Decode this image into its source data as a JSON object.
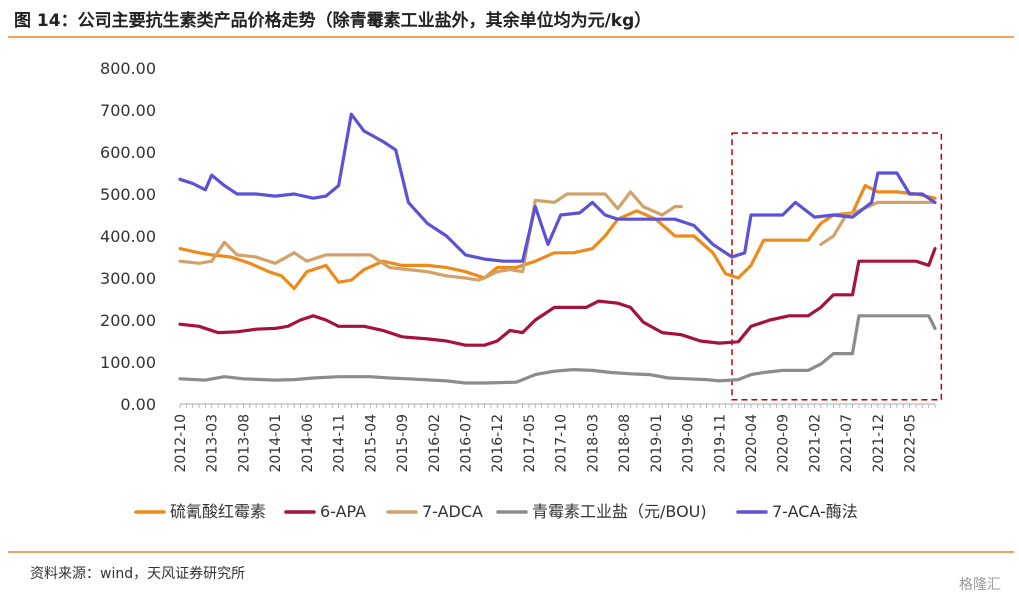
{
  "title": "图 14：公司主要抗生素类产品价格走势（除青霉素工业盐外，其余单位均为元/kg）",
  "source": "资料来源：wind，天风证券研究所",
  "watermark": "格隆汇",
  "chart_data": {
    "type": "line",
    "ylim": [
      0,
      800
    ],
    "yticks": [
      "0.00",
      "100.00",
      "200.00",
      "300.00",
      "400.00",
      "500.00",
      "600.00",
      "700.00",
      "800.00"
    ],
    "x_start": "2012-10",
    "x_end": "2022-09",
    "xtick_labels": [
      "2012-10",
      "2013-03",
      "2013-08",
      "2014-01",
      "2014-06",
      "2014-11",
      "2015-04",
      "2015-09",
      "2016-02",
      "2016-07",
      "2016-12",
      "2017-05",
      "2017-10",
      "2018-03",
      "2018-08",
      "2019-01",
      "2019-06",
      "2019-11",
      "2020-04",
      "2020-09",
      "2021-02",
      "2021-07",
      "2021-12",
      "2022-05"
    ],
    "highlight_box": {
      "x_from": "2020-01",
      "x_to": "2022-10",
      "y_from": 10,
      "y_to": 645,
      "color": "#C00000"
    },
    "series": [
      {
        "name": "硫氰酸红霉素",
        "color": "#ED8B1A",
        "points": [
          [
            "2012-10",
            370
          ],
          [
            "2013-01",
            360
          ],
          [
            "2013-03",
            355
          ],
          [
            "2013-06",
            350
          ],
          [
            "2013-09",
            335
          ],
          [
            "2013-12",
            315
          ],
          [
            "2014-02",
            305
          ],
          [
            "2014-04",
            275
          ],
          [
            "2014-06",
            315
          ],
          [
            "2014-09",
            330
          ],
          [
            "2014-11",
            290
          ],
          [
            "2015-01",
            295
          ],
          [
            "2015-03",
            320
          ],
          [
            "2015-06",
            340
          ],
          [
            "2015-09",
            330
          ],
          [
            "2016-01",
            330
          ],
          [
            "2016-04",
            325
          ],
          [
            "2016-07",
            315
          ],
          [
            "2016-10",
            300
          ],
          [
            "2016-12",
            325
          ],
          [
            "2017-03",
            325
          ],
          [
            "2017-06",
            340
          ],
          [
            "2017-09",
            360
          ],
          [
            "2017-12",
            360
          ],
          [
            "2018-03",
            370
          ],
          [
            "2018-05",
            400
          ],
          [
            "2018-07",
            440
          ],
          [
            "2018-10",
            460
          ],
          [
            "2019-01",
            440
          ],
          [
            "2019-04",
            400
          ],
          [
            "2019-07",
            400
          ],
          [
            "2019-10",
            360
          ],
          [
            "2019-12",
            310
          ],
          [
            "2020-02",
            300
          ],
          [
            "2020-04",
            330
          ],
          [
            "2020-06",
            390
          ],
          [
            "2020-09",
            390
          ],
          [
            "2021-01",
            390
          ],
          [
            "2021-03",
            430
          ],
          [
            "2021-05",
            450
          ],
          [
            "2021-08",
            455
          ],
          [
            "2021-10",
            520
          ],
          [
            "2021-12",
            505
          ],
          [
            "2022-03",
            505
          ],
          [
            "2022-06",
            500
          ],
          [
            "2022-09",
            490
          ]
        ]
      },
      {
        "name": "6-APA",
        "color": "#A3133A",
        "points": [
          [
            "2012-10",
            190
          ],
          [
            "2013-01",
            185
          ],
          [
            "2013-04",
            170
          ],
          [
            "2013-07",
            172
          ],
          [
            "2013-10",
            178
          ],
          [
            "2014-01",
            180
          ],
          [
            "2014-03",
            185
          ],
          [
            "2014-05",
            200
          ],
          [
            "2014-07",
            210
          ],
          [
            "2014-09",
            200
          ],
          [
            "2014-11",
            185
          ],
          [
            "2015-03",
            185
          ],
          [
            "2015-06",
            175
          ],
          [
            "2015-09",
            160
          ],
          [
            "2016-01",
            155
          ],
          [
            "2016-04",
            150
          ],
          [
            "2016-07",
            140
          ],
          [
            "2016-10",
            140
          ],
          [
            "2016-12",
            150
          ],
          [
            "2017-02",
            175
          ],
          [
            "2017-04",
            170
          ],
          [
            "2017-06",
            200
          ],
          [
            "2017-09",
            230
          ],
          [
            "2017-12",
            230
          ],
          [
            "2018-02",
            230
          ],
          [
            "2018-04",
            245
          ],
          [
            "2018-07",
            240
          ],
          [
            "2018-09",
            230
          ],
          [
            "2018-11",
            195
          ],
          [
            "2019-02",
            170
          ],
          [
            "2019-05",
            165
          ],
          [
            "2019-08",
            150
          ],
          [
            "2019-11",
            145
          ],
          [
            "2020-02",
            148
          ],
          [
            "2020-04",
            185
          ],
          [
            "2020-07",
            200
          ],
          [
            "2020-10",
            210
          ],
          [
            "2021-01",
            210
          ],
          [
            "2021-03",
            230
          ],
          [
            "2021-05",
            260
          ],
          [
            "2021-08",
            260
          ],
          [
            "2021-09",
            340
          ],
          [
            "2021-12",
            340
          ],
          [
            "2022-03",
            340
          ],
          [
            "2022-06",
            340
          ],
          [
            "2022-08",
            330
          ],
          [
            "2022-09",
            370
          ]
        ]
      },
      {
        "name": "7-ADCA",
        "color": "#D2A26B",
        "points": [
          [
            "2012-10",
            340
          ],
          [
            "2013-01",
            335
          ],
          [
            "2013-03",
            340
          ],
          [
            "2013-05",
            385
          ],
          [
            "2013-07",
            355
          ],
          [
            "2013-10",
            350
          ],
          [
            "2014-01",
            335
          ],
          [
            "2014-04",
            360
          ],
          [
            "2014-06",
            340
          ],
          [
            "2014-09",
            355
          ],
          [
            "2015-01",
            355
          ],
          [
            "2015-04",
            355
          ],
          [
            "2015-07",
            325
          ],
          [
            "2015-10",
            320
          ],
          [
            "2016-01",
            315
          ],
          [
            "2016-04",
            305
          ],
          [
            "2016-07",
            300
          ],
          [
            "2016-09",
            295
          ],
          [
            "2016-10",
            300
          ],
          [
            "2016-12",
            315
          ],
          [
            "2017-02",
            320
          ],
          [
            "2017-04",
            315
          ],
          [
            "2017-06",
            485
          ],
          [
            "2017-09",
            480
          ],
          [
            "2017-11",
            500
          ],
          [
            "2018-02",
            500
          ],
          [
            "2018-05",
            500
          ],
          [
            "2018-07",
            465
          ],
          [
            "2018-09",
            505
          ],
          [
            "2018-11",
            470
          ],
          [
            "2019-02",
            450
          ],
          [
            "2019-04",
            470
          ],
          [
            "2019-05",
            470
          ],
          null,
          [
            "2021-03",
            380
          ],
          [
            "2021-05",
            400
          ],
          [
            "2021-07",
            450
          ],
          [
            "2021-09",
            460
          ],
          [
            "2021-12",
            480
          ],
          [
            "2022-03",
            480
          ],
          [
            "2022-06",
            480
          ],
          [
            "2022-09",
            480
          ]
        ]
      },
      {
        "name": "青霉素工业盐（元/BOU)",
        "color": "#8C8C8C",
        "points": [
          [
            "2012-10",
            60
          ],
          [
            "2013-02",
            57
          ],
          [
            "2013-05",
            65
          ],
          [
            "2013-08",
            60
          ],
          [
            "2014-01",
            57
          ],
          [
            "2014-04",
            58
          ],
          [
            "2014-07",
            62
          ],
          [
            "2014-11",
            65
          ],
          [
            "2015-04",
            65
          ],
          [
            "2015-07",
            62
          ],
          [
            "2015-10",
            60
          ],
          [
            "2016-04",
            55
          ],
          [
            "2016-07",
            50
          ],
          [
            "2016-10",
            50
          ],
          [
            "2017-03",
            52
          ],
          [
            "2017-06",
            70
          ],
          [
            "2017-09",
            78
          ],
          [
            "2017-12",
            82
          ],
          [
            "2018-03",
            80
          ],
          [
            "2018-06",
            75
          ],
          [
            "2018-09",
            72
          ],
          [
            "2018-12",
            70
          ],
          [
            "2019-03",
            62
          ],
          [
            "2019-06",
            60
          ],
          [
            "2019-09",
            58
          ],
          [
            "2019-11",
            55
          ],
          [
            "2020-02",
            58
          ],
          [
            "2020-04",
            70
          ],
          [
            "2020-06",
            75
          ],
          [
            "2020-09",
            80
          ],
          [
            "2021-01",
            80
          ],
          [
            "2021-03",
            95
          ],
          [
            "2021-05",
            120
          ],
          [
            "2021-08",
            120
          ],
          [
            "2021-09",
            210
          ],
          [
            "2021-12",
            210
          ],
          [
            "2022-03",
            210
          ],
          [
            "2022-06",
            210
          ],
          [
            "2022-08",
            210
          ],
          [
            "2022-09",
            180
          ]
        ]
      },
      {
        "name": "7-ACA-酶法",
        "color": "#5B52D6",
        "points": [
          [
            "2012-10",
            535
          ],
          [
            "2012-12",
            525
          ],
          [
            "2013-02",
            510
          ],
          [
            "2013-03",
            545
          ],
          [
            "2013-05",
            520
          ],
          [
            "2013-07",
            500
          ],
          [
            "2013-10",
            500
          ],
          [
            "2014-01",
            495
          ],
          [
            "2014-04",
            500
          ],
          [
            "2014-07",
            490
          ],
          [
            "2014-09",
            495
          ],
          [
            "2014-11",
            520
          ],
          [
            "2015-01",
            690
          ],
          [
            "2015-03",
            650
          ],
          [
            "2015-06",
            625
          ],
          [
            "2015-08",
            605
          ],
          [
            "2015-10",
            480
          ],
          [
            "2016-01",
            430
          ],
          [
            "2016-04",
            400
          ],
          [
            "2016-07",
            355
          ],
          [
            "2016-10",
            345
          ],
          [
            "2017-01",
            340
          ],
          [
            "2017-04",
            340
          ],
          [
            "2017-06",
            470
          ],
          [
            "2017-08",
            380
          ],
          [
            "2017-10",
            450
          ],
          [
            "2018-01",
            455
          ],
          [
            "2018-03",
            480
          ],
          [
            "2018-05",
            450
          ],
          [
            "2018-07",
            440
          ],
          [
            "2018-10",
            440
          ],
          [
            "2019-01",
            440
          ],
          [
            "2019-04",
            440
          ],
          [
            "2019-07",
            425
          ],
          [
            "2019-10",
            380
          ],
          [
            "2020-01",
            350
          ],
          [
            "2020-03",
            360
          ],
          [
            "2020-04",
            450
          ],
          [
            "2020-07",
            450
          ],
          [
            "2020-09",
            450
          ],
          [
            "2020-11",
            480
          ],
          [
            "2021-02",
            445
          ],
          [
            "2021-05",
            450
          ],
          [
            "2021-08",
            445
          ],
          [
            "2021-11",
            480
          ],
          [
            "2021-12",
            550
          ],
          [
            "2022-03",
            550
          ],
          [
            "2022-05",
            500
          ],
          [
            "2022-07",
            500
          ],
          [
            "2022-09",
            480
          ]
        ]
      }
    ]
  }
}
